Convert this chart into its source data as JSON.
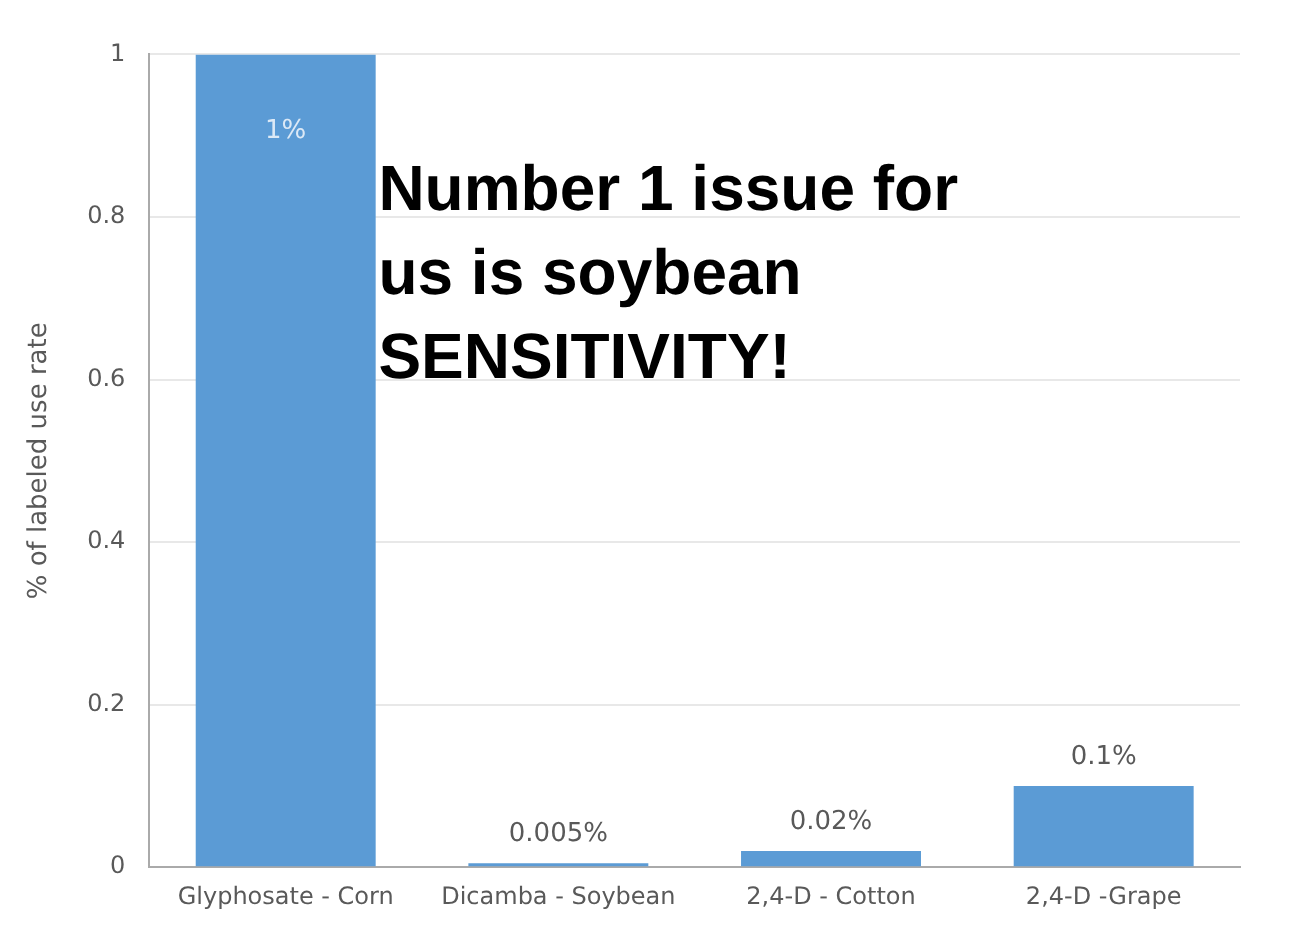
{
  "chart_data": {
    "type": "bar",
    "ylabel": "% of labeled use rate",
    "categories": [
      "Glyphosate - Corn",
      "Dicamba - Soybean",
      "2,4-D - Cotton",
      "2,4-D -Grape"
    ],
    "values": [
      1,
      0.005,
      0.02,
      0.1
    ],
    "value_labels": [
      "1%",
      "0.005%",
      "0.02%",
      "0.1%"
    ],
    "color": "#5b9bd5",
    "ylim": [
      0,
      1
    ],
    "yticks": [
      0,
      0.2,
      0.4,
      0.6,
      0.8,
      1
    ],
    "grid": "y",
    "annotations": [
      "Number 1 issue for us is soybean SENSITIVITY!"
    ]
  }
}
